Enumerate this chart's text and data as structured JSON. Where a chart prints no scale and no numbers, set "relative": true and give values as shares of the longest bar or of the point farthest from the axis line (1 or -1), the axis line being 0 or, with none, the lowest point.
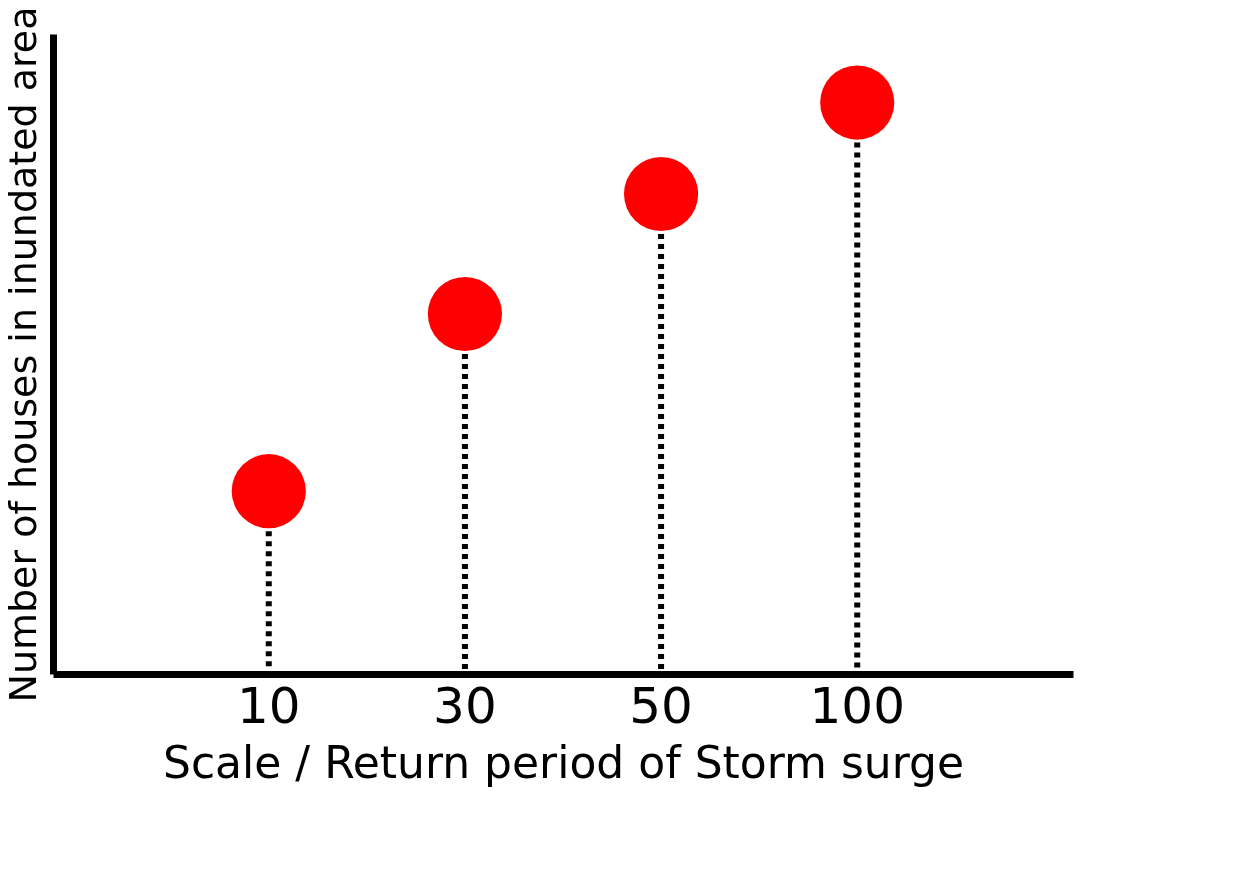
{
  "chart_data": {
    "type": "lollipop",
    "relative": true,
    "xlabel": "Scale / Return period of Storm surge",
    "ylabel": "Number of houses in inundated area",
    "categories": [
      "10",
      "30",
      "50",
      "100"
    ],
    "series": [
      {
        "color": "#ff0000",
        "values": [
          0.32,
          0.63,
          0.84,
          1.0
        ]
      }
    ],
    "marker": "circle",
    "line_style": "dotted"
  }
}
